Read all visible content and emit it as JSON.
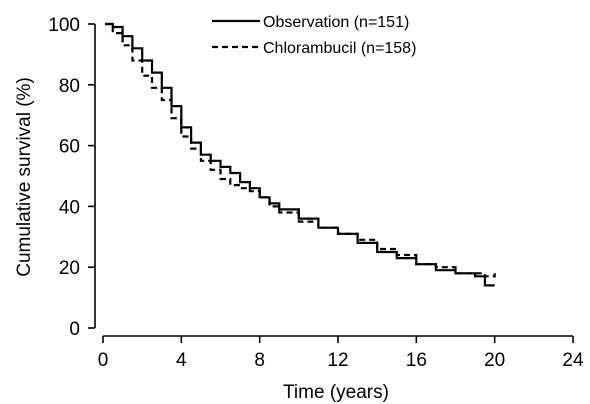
{
  "chart_data": {
    "type": "line",
    "title": "",
    "xlabel": "Time (years)",
    "ylabel": "Cumulative survival (%)",
    "xlim": [
      0,
      24
    ],
    "ylim": [
      0,
      100
    ],
    "xticks": [
      0,
      4,
      8,
      12,
      16,
      20,
      24
    ],
    "yticks": [
      0,
      20,
      40,
      60,
      80,
      100
    ],
    "grid": false,
    "legend_position": "top-right",
    "series": [
      {
        "name": "Observation (n=151)",
        "style": "solid",
        "color": "#000000",
        "x": [
          0.1,
          0.5,
          1.0,
          1.5,
          2.0,
          2.5,
          3.0,
          3.5,
          4.0,
          4.5,
          5.0,
          5.5,
          6.0,
          6.5,
          7.0,
          7.5,
          8.0,
          8.5,
          9.0,
          10.0,
          11.0,
          12.0,
          13.0,
          14.0,
          15.0,
          16.0,
          17.0,
          18.0,
          19.0,
          19.5,
          20.0
        ],
        "y": [
          100,
          99,
          96,
          92,
          88,
          84,
          79,
          73,
          66,
          61,
          57,
          55,
          53,
          51,
          48,
          46,
          43,
          41,
          39,
          36,
          33,
          31,
          28,
          25,
          23,
          21,
          19,
          18,
          17,
          14,
          14
        ]
      },
      {
        "name": "Chlorambucil (n=158)",
        "style": "dashed",
        "color": "#000000",
        "x": [
          0.1,
          0.5,
          1.0,
          1.5,
          2.0,
          2.5,
          3.0,
          3.5,
          4.0,
          4.5,
          5.0,
          5.5,
          6.0,
          6.5,
          7.0,
          7.5,
          8.0,
          8.5,
          9.0,
          10.0,
          11.0,
          12.0,
          13.0,
          14.0,
          15.0,
          16.0,
          17.0,
          18.0,
          19.0,
          19.5,
          20.0
        ],
        "y": [
          100,
          97,
          93,
          88,
          83,
          79,
          75,
          69,
          63,
          59,
          55,
          52,
          49,
          47,
          46,
          45,
          43,
          40,
          38,
          35,
          33,
          31,
          29,
          26,
          24,
          21,
          20,
          18,
          18,
          17,
          18
        ]
      }
    ]
  }
}
